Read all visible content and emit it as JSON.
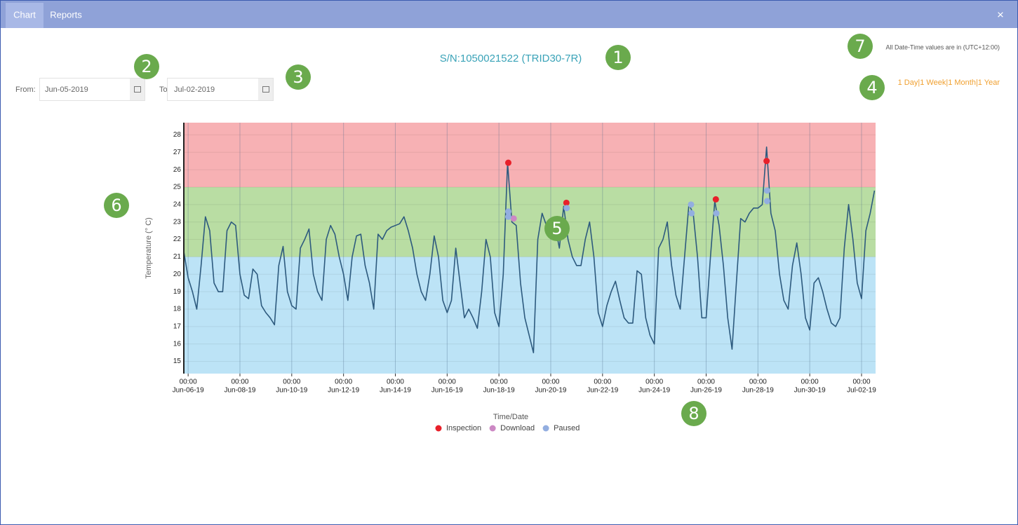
{
  "tabs": [
    "Chart",
    "Reports"
  ],
  "close": "×",
  "title": "S/N:1050021522 (TRID30-7R)",
  "timezone_note": "All Date-Time values are in (UTC+12:00)",
  "from": {
    "label": "From:",
    "value": "Jun-05-2019"
  },
  "to": {
    "label": "To:",
    "value": "Jul-02-2019"
  },
  "ranges": [
    "1 Day",
    "1 Week",
    "1 Month",
    "1 Year"
  ],
  "range_separator": "|",
  "callouts": [
    "1",
    "2",
    "3",
    "4",
    "5",
    "6",
    "7",
    "8"
  ],
  "chart_data": {
    "type": "line",
    "y_label": "Temperature (° C)",
    "x_label": "Time/Date",
    "color": "#2d5a7e",
    "x": [
      "2019-06-05T20:00",
      "2019-06-06T00:00",
      "2019-06-06T04:00",
      "2019-06-06T08:00",
      "2019-06-06T12:00",
      "2019-06-06T16:00",
      "2019-06-06T20:00",
      "2019-06-07T00:00",
      "2019-06-07T04:00",
      "2019-06-07T08:00",
      "2019-06-07T12:00",
      "2019-06-07T16:00",
      "2019-06-07T20:00",
      "2019-06-08T00:00",
      "2019-06-08T04:00",
      "2019-06-08T08:00",
      "2019-06-08T12:00",
      "2019-06-08T16:00",
      "2019-06-08T20:00",
      "2019-06-09T00:00",
      "2019-06-09T04:00",
      "2019-06-09T08:00",
      "2019-06-09T12:00",
      "2019-06-09T16:00",
      "2019-06-09T20:00",
      "2019-06-10T00:00",
      "2019-06-10T04:00",
      "2019-06-10T08:00",
      "2019-06-10T12:00",
      "2019-06-10T16:00",
      "2019-06-10T20:00",
      "2019-06-11T00:00",
      "2019-06-11T04:00",
      "2019-06-11T08:00",
      "2019-06-11T12:00",
      "2019-06-11T16:00",
      "2019-06-11T20:00",
      "2019-06-12T00:00",
      "2019-06-12T04:00",
      "2019-06-12T08:00",
      "2019-06-12T12:00",
      "2019-06-12T16:00",
      "2019-06-12T20:00",
      "2019-06-13T00:00",
      "2019-06-13T04:00",
      "2019-06-13T08:00",
      "2019-06-13T12:00",
      "2019-06-13T16:00",
      "2019-06-13T20:00",
      "2019-06-14T00:00",
      "2019-06-14T04:00",
      "2019-06-14T08:00",
      "2019-06-14T12:00",
      "2019-06-14T16:00",
      "2019-06-14T20:00",
      "2019-06-15T00:00",
      "2019-06-15T04:00",
      "2019-06-15T08:00",
      "2019-06-15T12:00",
      "2019-06-15T16:00",
      "2019-06-15T20:00",
      "2019-06-16T00:00",
      "2019-06-16T04:00",
      "2019-06-16T08:00",
      "2019-06-16T12:00",
      "2019-06-16T16:00",
      "2019-06-16T20:00",
      "2019-06-17T00:00",
      "2019-06-17T04:00",
      "2019-06-17T08:00",
      "2019-06-17T12:00",
      "2019-06-17T16:00",
      "2019-06-17T20:00",
      "2019-06-18T00:00",
      "2019-06-18T04:00",
      "2019-06-18T08:00",
      "2019-06-18T12:00",
      "2019-06-18T16:00",
      "2019-06-18T20:00",
      "2019-06-19T00:00",
      "2019-06-19T04:00",
      "2019-06-19T08:00",
      "2019-06-19T12:00",
      "2019-06-19T16:00",
      "2019-06-19T20:00",
      "2019-06-20T00:00",
      "2019-06-20T04:00",
      "2019-06-20T08:00",
      "2019-06-20T12:00",
      "2019-06-20T16:00",
      "2019-06-20T20:00",
      "2019-06-21T00:00",
      "2019-06-21T04:00",
      "2019-06-21T08:00",
      "2019-06-21T12:00",
      "2019-06-21T16:00",
      "2019-06-21T20:00",
      "2019-06-22T00:00",
      "2019-06-22T04:00",
      "2019-06-22T08:00",
      "2019-06-22T12:00",
      "2019-06-22T16:00",
      "2019-06-22T20:00",
      "2019-06-23T00:00",
      "2019-06-23T04:00",
      "2019-06-23T08:00",
      "2019-06-23T12:00",
      "2019-06-23T16:00",
      "2019-06-23T20:00",
      "2019-06-24T00:00",
      "2019-06-24T04:00",
      "2019-06-24T08:00",
      "2019-06-24T12:00",
      "2019-06-24T16:00",
      "2019-06-24T20:00",
      "2019-06-25T00:00",
      "2019-06-25T04:00",
      "2019-06-25T08:00",
      "2019-06-25T12:00",
      "2019-06-25T16:00",
      "2019-06-25T20:00",
      "2019-06-26T00:00",
      "2019-06-26T04:00",
      "2019-06-26T08:00",
      "2019-06-26T12:00",
      "2019-06-26T16:00",
      "2019-06-26T20:00",
      "2019-06-27T00:00",
      "2019-06-27T04:00",
      "2019-06-27T08:00",
      "2019-06-27T12:00",
      "2019-06-27T16:00",
      "2019-06-27T20:00",
      "2019-06-28T00:00",
      "2019-06-28T04:00",
      "2019-06-28T08:00",
      "2019-06-28T12:00",
      "2019-06-28T16:00",
      "2019-06-28T20:00",
      "2019-06-29T00:00",
      "2019-06-29T04:00",
      "2019-06-29T08:00",
      "2019-06-29T12:00",
      "2019-06-29T16:00",
      "2019-06-29T20:00",
      "2019-06-30T00:00",
      "2019-06-30T04:00",
      "2019-06-30T08:00",
      "2019-06-30T12:00",
      "2019-06-30T16:00",
      "2019-06-30T20:00",
      "2019-07-01T00:00",
      "2019-07-01T04:00",
      "2019-07-01T08:00",
      "2019-07-01T12:00",
      "2019-07-01T16:00",
      "2019-07-01T20:00",
      "2019-07-02T00:00",
      "2019-07-02T04:00",
      "2019-07-02T08:00",
      "2019-07-02T12:00"
    ],
    "values": [
      21.3,
      19.8,
      19.0,
      18.0,
      20.5,
      23.3,
      22.5,
      19.5,
      19.0,
      19.0,
      22.5,
      23.0,
      22.8,
      20.0,
      18.8,
      18.6,
      20.3,
      20.0,
      18.2,
      17.8,
      17.5,
      17.1,
      20.5,
      21.6,
      19.0,
      18.2,
      18.0,
      21.5,
      22.0,
      22.6,
      20.0,
      19.0,
      18.5,
      22.0,
      22.8,
      22.3,
      21.0,
      20.0,
      18.5,
      21.0,
      22.2,
      22.3,
      20.5,
      19.5,
      18.0,
      22.3,
      22.0,
      22.5,
      22.7,
      22.8,
      22.9,
      23.3,
      22.5,
      21.5,
      20.0,
      19.0,
      18.5,
      20.0,
      22.2,
      21.0,
      18.5,
      17.8,
      18.5,
      21.5,
      19.5,
      17.5,
      18.0,
      17.5,
      16.9,
      19.0,
      22.0,
      21.0,
      17.8,
      17.0,
      20.0,
      26.4,
      23.0,
      22.8,
      19.5,
      17.5,
      16.5,
      15.5,
      22.0,
      23.5,
      22.8,
      22.5,
      22.8,
      21.5,
      23.9,
      22.0,
      21.0,
      20.5,
      20.5,
      22.0,
      23.0,
      21.0,
      17.8,
      17.0,
      18.2,
      19.0,
      19.6,
      18.5,
      17.5,
      17.2,
      17.2,
      20.2,
      20.0,
      17.5,
      16.5,
      16.0,
      21.5,
      22.0,
      23.0,
      20.5,
      18.8,
      18.0,
      21.0,
      24.0,
      23.5,
      21.0,
      17.5,
      17.5,
      21.0,
      24.2,
      22.8,
      20.5,
      17.5,
      15.7,
      19.5,
      23.2,
      23.0,
      23.5,
      23.8,
      23.8,
      24.0,
      27.3,
      23.5,
      22.5,
      20.0,
      18.5,
      18.0,
      20.5,
      21.8,
      20.0,
      17.5,
      16.8,
      19.5,
      19.8,
      19.0,
      18.0,
      17.2,
      17.0,
      17.5,
      21.5,
      24.0,
      22.0,
      19.5,
      18.6,
      22.5,
      23.5,
      24.8
    ],
    "events": [
      {
        "name": "Inspection",
        "color": "#e8202a",
        "x": [
          "2019-06-18T08:40",
          "2019-06-20T14:30",
          "2019-06-26T09:00",
          "2019-06-28T08:00"
        ],
        "values": [
          26.4,
          24.1,
          24.3,
          26.5
        ]
      },
      {
        "name": "Download",
        "color": "#cc88c4",
        "x": [
          "2019-06-18T13:40"
        ],
        "values": [
          23.2
        ]
      },
      {
        "name": "Paused",
        "color": "#93aee0",
        "x": [
          "2019-06-18T08:40",
          "2019-06-18T08:40",
          "2019-06-20T14:50",
          "2019-06-25T10:00",
          "2019-06-25T10:30",
          "2019-06-26T09:30",
          "2019-06-28T08:30",
          "2019-06-28T08:30"
        ],
        "values": [
          23.6,
          23.3,
          23.8,
          24.0,
          23.5,
          23.5,
          24.8,
          24.2
        ]
      }
    ],
    "bands": [
      {
        "from": 25,
        "to": 28.7,
        "color": "#f7b1b4"
      },
      {
        "from": 21,
        "to": 25,
        "color": "#b9dda3"
      },
      {
        "from": 14.3,
        "to": 21,
        "color": "#bce3f6"
      }
    ],
    "xlim": [
      "2019-06-05T20:00",
      "2019-07-02T13:00"
    ],
    "ylim": [
      14.3,
      28.7
    ],
    "yticks": [
      15,
      16,
      17,
      18,
      19,
      20,
      21,
      22,
      23,
      24,
      25,
      26,
      27,
      28
    ],
    "xticks": [
      {
        "value": "2019-06-06T00:00",
        "label": [
          "00:00",
          "Jun-06-19"
        ]
      },
      {
        "value": "2019-06-08T00:00",
        "label": [
          "00:00",
          "Jun-08-19"
        ]
      },
      {
        "value": "2019-06-10T00:00",
        "label": [
          "00:00",
          "Jun-10-19"
        ]
      },
      {
        "value": "2019-06-12T00:00",
        "label": [
          "00:00",
          "Jun-12-19"
        ]
      },
      {
        "value": "2019-06-14T00:00",
        "label": [
          "00:00",
          "Jun-14-19"
        ]
      },
      {
        "value": "2019-06-16T00:00",
        "label": [
          "00:00",
          "Jun-16-19"
        ]
      },
      {
        "value": "2019-06-18T00:00",
        "label": [
          "00:00",
          "Jun-18-19"
        ]
      },
      {
        "value": "2019-06-20T00:00",
        "label": [
          "00:00",
          "Jun-20-19"
        ]
      },
      {
        "value": "2019-06-22T00:00",
        "label": [
          "00:00",
          "Jun-22-19"
        ]
      },
      {
        "value": "2019-06-24T00:00",
        "label": [
          "00:00",
          "Jun-24-19"
        ]
      },
      {
        "value": "2019-06-26T00:00",
        "label": [
          "00:00",
          "Jun-26-19"
        ]
      },
      {
        "value": "2019-06-28T00:00",
        "label": [
          "00:00",
          "Jun-28-19"
        ]
      },
      {
        "value": "2019-06-30T00:00",
        "label": [
          "00:00",
          "Jun-30-19"
        ]
      },
      {
        "value": "2019-07-02T00:00",
        "label": [
          "00:00",
          "Jul-02-19"
        ]
      }
    ],
    "grid": true,
    "legend": "bottom"
  }
}
